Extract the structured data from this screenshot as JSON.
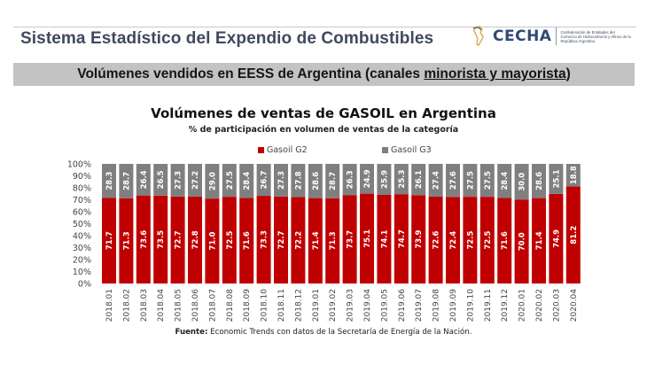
{
  "header": {
    "title": "Sistema Estadístico del Expendio de Combustibles",
    "logo": {
      "name": "CECHA",
      "subtitle": "Confederación de Entidades del Comercio de Hidrocarburos y Afines de la República Argentina"
    }
  },
  "banner": {
    "text_prefix": "Volúmenes vendidos en EESS de Argentina (canales ",
    "text_underlined": "minorista y mayorista",
    "text_suffix": ")"
  },
  "colors": {
    "g2": "#c00000",
    "g3": "#7f7f7f",
    "header_text": "#3e4a5c",
    "banner_bg": "#c3c3c3"
  },
  "chart_data": {
    "type": "bar",
    "stacked": true,
    "percent_stacked": true,
    "title": "Volúmenes de ventas de GASOIL en Argentina",
    "subtitle": "% de participación en volumen de ventas de la categoría",
    "xlabel": "",
    "ylabel": "",
    "ylim": [
      0,
      100
    ],
    "yticks": [
      "0%",
      "10%",
      "20%",
      "30%",
      "40%",
      "50%",
      "60%",
      "70%",
      "80%",
      "90%",
      "100%"
    ],
    "grid": false,
    "legend_position": "top",
    "categories": [
      "2018.01",
      "2018.02",
      "2018.03",
      "2018.04",
      "2018.05",
      "2018.06",
      "2018.07",
      "2018.08",
      "2018.09",
      "2018.10",
      "2018.11",
      "2018.12",
      "2019.01",
      "2019.02",
      "2019.03",
      "2019.04",
      "2019.05",
      "2019.06",
      "2019.07",
      "2019.08",
      "2019.09",
      "2019.10",
      "2019.11",
      "2019.12",
      "2020.01",
      "2020.02",
      "2020.03",
      "2020.04"
    ],
    "series": [
      {
        "name": "Gasoil G2",
        "color": "#c00000",
        "values": [
          71.7,
          71.3,
          73.6,
          73.5,
          72.7,
          72.8,
          71.0,
          72.5,
          71.6,
          73.3,
          72.7,
          72.2,
          71.4,
          71.3,
          73.7,
          75.1,
          74.1,
          74.7,
          73.9,
          72.6,
          72.4,
          72.5,
          72.5,
          71.6,
          70.0,
          71.4,
          74.9,
          81.2
        ]
      },
      {
        "name": "Gasoil G3",
        "color": "#7f7f7f",
        "values": [
          28.3,
          28.7,
          26.4,
          26.5,
          27.3,
          27.2,
          29.0,
          27.5,
          28.4,
          26.7,
          27.3,
          27.8,
          28.6,
          28.7,
          26.3,
          24.9,
          25.9,
          25.3,
          26.1,
          27.4,
          27.6,
          27.5,
          27.5,
          28.4,
          30.0,
          28.6,
          25.1,
          18.8
        ]
      }
    ],
    "value_format": "0.0"
  },
  "footer": {
    "source_label": "Fuente:",
    "source_text": " Economic Trends con datos de la Secretaría de Energía de la Nación."
  }
}
